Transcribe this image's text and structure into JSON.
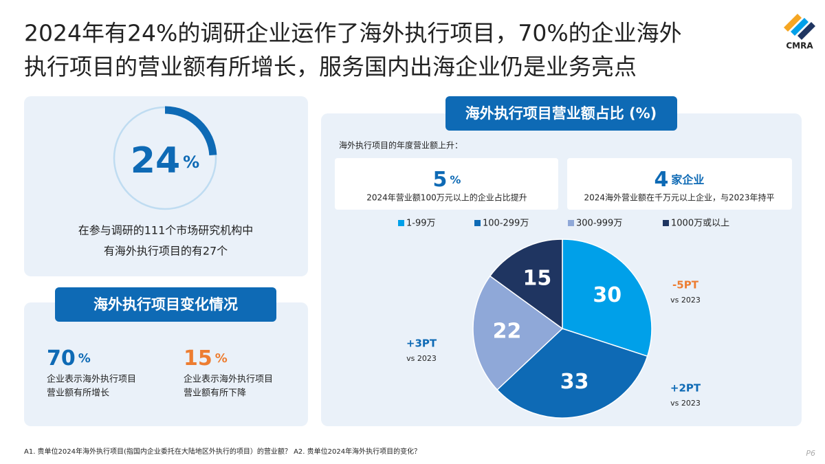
{
  "logo": "CMRA",
  "title": [
    "2024年有24%的调研企业运作了海外执行项目，70%的企业海外",
    "执行项目的营业额有所增长，服务国内出海企业仍是业务亮点"
  ],
  "ring": {
    "value": 24,
    "unit": "%",
    "caption": [
      "在参与调研的111个市场研究机构中",
      "有海外执行项目的有27个"
    ]
  },
  "change": {
    "title": "海外执行项目变化情况",
    "items": [
      {
        "value": 70,
        "unit": "%",
        "color": "#0e6ab5",
        "text": [
          "企业表示海外执行项目",
          "营业额有所增长"
        ]
      },
      {
        "value": 15,
        "unit": "%",
        "color": "#ed7d31",
        "text": [
          "企业表示海外执行项目",
          "营业额有所下降"
        ]
      }
    ]
  },
  "chart_data": {
    "type": "pie",
    "title": "海外执行项目营业额占比 (%)",
    "subtitle": "海外执行项目的年度营业额上升：",
    "highlights": [
      {
        "value": 5,
        "unit": "%",
        "text": "2024年营业额100万元以上的企业占比提升"
      },
      {
        "value": 4,
        "unit": "家企业",
        "text": "2024海外营业额在千万元以上企业，与2023年持平"
      }
    ],
    "categories": [
      "1-99万",
      "100-299万",
      "300-999万",
      "1000万或以上"
    ],
    "values": [
      30,
      33,
      22,
      15
    ],
    "colors": [
      "#00a0e9",
      "#0e6ab5",
      "#8fa8d8",
      "#1f3561"
    ],
    "annotations": [
      {
        "text": "-5PT",
        "note": "vs 2023",
        "color": "#ed7d31"
      },
      {
        "text": "+2PT",
        "note": "vs 2023",
        "color": "#0e6ab5"
      },
      {
        "text": "+3PT",
        "note": "vs 2023",
        "color": "#0e6ab5"
      }
    ]
  },
  "footnote": "A1. 贵单位2024年海外执行项目(指国内企业委托在大陆地区外执行的项目）的营业额？ A2. 贵单位2024年海外执行项目的变化？",
  "page": "P6"
}
